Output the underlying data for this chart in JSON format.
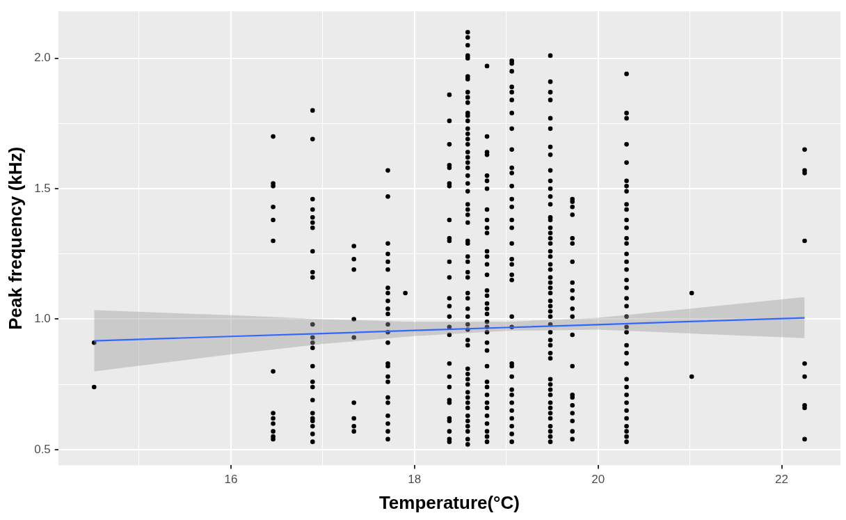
{
  "chart_data": {
    "type": "scatter",
    "xlabel": "Temperature(°C)",
    "ylabel": "Peak frequency (kHz)",
    "xlim": [
      14.12,
      22.64
    ],
    "ylim": [
      0.44,
      2.18
    ],
    "xticks": [
      {
        "value": 15,
        "label": null
      },
      16,
      {
        "value": 17,
        "label": null
      },
      18,
      {
        "value": 19,
        "label": null
      },
      20,
      {
        "value": 21,
        "label": null
      },
      22
    ],
    "yticks": [
      {
        "value": 0.5,
        "label": "0.5"
      },
      {
        "value": 0.75,
        "label": null
      },
      {
        "value": 1.0,
        "label": "1.0"
      },
      {
        "value": 1.25,
        "label": null
      },
      {
        "value": 1.5,
        "label": "1.5"
      },
      {
        "value": 1.75,
        "label": null
      },
      {
        "value": 2.0,
        "label": "2.0"
      }
    ],
    "grid": true,
    "legend": false,
    "marker": "circle",
    "series": [
      {
        "type": "scatter",
        "color": "#000000",
        "x": [
          14.51,
          14.51
        ],
        "values": [
          0.91,
          0.74
        ]
      },
      {
        "type": "scatter",
        "color": "#000000",
        "x": [
          16.46,
          16.46,
          16.46,
          16.46,
          16.46,
          16.46,
          16.46,
          16.46,
          16.46,
          16.46,
          16.46,
          16.46,
          16.46
        ],
        "values": [
          1.7,
          1.52,
          1.51,
          1.43,
          1.38,
          1.3,
          0.8,
          0.64,
          0.62,
          0.6,
          0.57,
          0.55,
          0.54
        ]
      },
      {
        "type": "scatter",
        "color": "#000000",
        "x": [
          16.89,
          16.89,
          16.89,
          16.89,
          16.89,
          16.89,
          16.89,
          16.89,
          16.89,
          16.89,
          16.89,
          16.89,
          16.89,
          16.89,
          16.89,
          16.89,
          16.89,
          16.89,
          16.89,
          16.89,
          16.89,
          16.89,
          16.89,
          16.89
        ],
        "values": [
          1.8,
          1.69,
          1.46,
          1.42,
          1.39,
          1.37,
          1.35,
          1.26,
          1.18,
          1.16,
          0.98,
          0.93,
          0.91,
          0.89,
          0.82,
          0.76,
          0.74,
          0.69,
          0.64,
          0.62,
          0.61,
          0.59,
          0.56,
          0.53
        ]
      },
      {
        "type": "scatter",
        "color": "#000000",
        "x": [
          17.34,
          17.34,
          17.34,
          17.34,
          17.34,
          17.34,
          17.34,
          17.34,
          17.34
        ],
        "values": [
          1.28,
          1.23,
          1.19,
          1.0,
          0.93,
          0.68,
          0.62,
          0.59,
          0.57
        ]
      },
      {
        "type": "scatter",
        "color": "#000000",
        "x": [
          17.71,
          17.71,
          17.71,
          17.71,
          17.71,
          17.71,
          17.71,
          17.71,
          17.71,
          17.71,
          17.71,
          17.71,
          17.71,
          17.71,
          17.71,
          17.71,
          17.71,
          17.71,
          17.71,
          17.71,
          17.71,
          17.71,
          17.71,
          17.71
        ],
        "values": [
          1.57,
          1.47,
          1.29,
          1.25,
          1.22,
          1.19,
          1.12,
          1.1,
          1.07,
          1.04,
          1.02,
          0.98,
          0.95,
          0.91,
          0.83,
          0.82,
          0.78,
          0.76,
          0.7,
          0.68,
          0.63,
          0.6,
          0.57,
          0.54
        ]
      },
      {
        "type": "scatter",
        "color": "#000000",
        "x": [
          17.9
        ],
        "values": [
          1.1
        ]
      },
      {
        "type": "scatter",
        "color": "#000000",
        "x": [
          18.38,
          18.38,
          18.38,
          18.38,
          18.38,
          18.38,
          18.38,
          18.38,
          18.38,
          18.38,
          18.38,
          18.38,
          18.38,
          18.38,
          18.38,
          18.38,
          18.38,
          18.38,
          18.38,
          18.38,
          18.38,
          18.38,
          18.38,
          18.38,
          18.38,
          18.38,
          18.38
        ],
        "values": [
          1.86,
          1.76,
          1.67,
          1.59,
          1.58,
          1.52,
          1.51,
          1.38,
          1.31,
          1.3,
          1.22,
          1.16,
          1.08,
          1.05,
          1.01,
          0.97,
          0.94,
          0.83,
          0.78,
          0.74,
          0.69,
          0.68,
          0.62,
          0.61,
          0.57,
          0.54,
          0.53
        ]
      },
      {
        "type": "scatter",
        "color": "#000000",
        "x": [
          18.58,
          18.58,
          18.58,
          18.58,
          18.58,
          18.58,
          18.58,
          18.58,
          18.58,
          18.58,
          18.58,
          18.58,
          18.58,
          18.58,
          18.58,
          18.58,
          18.58,
          18.58,
          18.58,
          18.58,
          18.58,
          18.58,
          18.58,
          18.58,
          18.58,
          18.58,
          18.58,
          18.58,
          18.58,
          18.58,
          18.58,
          18.58,
          18.58,
          18.58,
          18.58,
          18.58,
          18.58,
          18.58,
          18.58,
          18.58,
          18.58,
          18.58,
          18.58,
          18.58,
          18.58,
          18.58,
          18.58,
          18.58,
          18.58,
          18.58,
          18.58,
          18.58,
          18.58,
          18.58,
          18.58,
          18.58
        ],
        "values": [
          2.1,
          2.08,
          2.05,
          2.01,
          2.0,
          1.93,
          1.92,
          1.87,
          1.85,
          1.83,
          1.79,
          1.78,
          1.76,
          1.73,
          1.71,
          1.69,
          1.67,
          1.64,
          1.62,
          1.6,
          1.58,
          1.55,
          1.52,
          1.49,
          1.44,
          1.42,
          1.4,
          1.37,
          1.3,
          1.29,
          1.24,
          1.22,
          1.18,
          1.16,
          1.1,
          1.08,
          1.04,
          1.01,
          0.98,
          0.96,
          0.92,
          0.9,
          0.81,
          0.79,
          0.77,
          0.75,
          0.72,
          0.7,
          0.68,
          0.66,
          0.63,
          0.61,
          0.59,
          0.57,
          0.54,
          0.52
        ]
      },
      {
        "type": "scatter",
        "color": "#000000",
        "x": [
          18.79,
          18.79,
          18.79,
          18.79,
          18.79,
          18.79,
          18.79,
          18.79,
          18.79,
          18.79,
          18.79,
          18.79,
          18.79,
          18.79,
          18.79,
          18.79,
          18.79,
          18.79,
          18.79,
          18.79,
          18.79,
          18.79,
          18.79,
          18.79,
          18.79,
          18.79,
          18.79,
          18.79,
          18.79,
          18.79,
          18.79,
          18.79,
          18.79,
          18.79,
          18.79,
          18.79
        ],
        "values": [
          1.97,
          1.7,
          1.64,
          1.63,
          1.55,
          1.53,
          1.5,
          1.42,
          1.38,
          1.35,
          1.33,
          1.26,
          1.24,
          1.21,
          1.17,
          1.11,
          1.09,
          1.06,
          1.04,
          1.02,
          0.99,
          0.97,
          0.95,
          0.91,
          0.88,
          0.82,
          0.76,
          0.74,
          0.71,
          0.68,
          0.66,
          0.63,
          0.6,
          0.57,
          0.55,
          0.53
        ]
      },
      {
        "type": "scatter",
        "color": "#000000",
        "x": [
          19.06,
          19.06,
          19.06,
          19.06,
          19.06,
          19.06,
          19.06,
          19.06,
          19.06,
          19.06,
          19.06,
          19.06,
          19.06,
          19.06,
          19.06,
          19.06,
          19.06,
          19.06,
          19.06,
          19.06,
          19.06,
          19.06,
          19.06,
          19.06,
          19.06,
          19.06,
          19.06,
          19.06,
          19.06,
          19.06,
          19.06,
          19.06,
          19.06,
          19.06
        ],
        "values": [
          1.99,
          1.98,
          1.95,
          1.89,
          1.87,
          1.84,
          1.79,
          1.73,
          1.65,
          1.58,
          1.56,
          1.51,
          1.46,
          1.43,
          1.38,
          1.35,
          1.29,
          1.23,
          1.21,
          1.17,
          1.15,
          1.01,
          0.97,
          0.83,
          0.82,
          0.78,
          0.73,
          0.71,
          0.68,
          0.65,
          0.62,
          0.59,
          0.56,
          0.53
        ]
      },
      {
        "type": "scatter",
        "color": "#000000",
        "x": [
          19.48,
          19.48,
          19.48,
          19.48,
          19.48,
          19.48,
          19.48,
          19.48,
          19.48,
          19.48,
          19.48,
          19.48,
          19.48,
          19.48,
          19.48,
          19.48,
          19.48,
          19.48,
          19.48,
          19.48,
          19.48,
          19.48,
          19.48,
          19.48,
          19.48,
          19.48,
          19.48,
          19.48,
          19.48,
          19.48,
          19.48,
          19.48,
          19.48,
          19.48,
          19.48,
          19.48,
          19.48,
          19.48,
          19.48,
          19.48,
          19.48,
          19.48,
          19.48,
          19.48,
          19.48,
          19.48,
          19.48,
          19.48,
          19.48
        ],
        "values": [
          2.01,
          1.91,
          1.87,
          1.84,
          1.77,
          1.73,
          1.66,
          1.63,
          1.57,
          1.53,
          1.5,
          1.47,
          1.44,
          1.39,
          1.38,
          1.35,
          1.33,
          1.31,
          1.29,
          1.26,
          1.24,
          1.21,
          1.19,
          1.16,
          1.14,
          1.12,
          1.1,
          1.07,
          1.05,
          1.03,
          1.01,
          0.98,
          0.95,
          0.92,
          0.9,
          0.87,
          0.85,
          0.77,
          0.75,
          0.73,
          0.71,
          0.68,
          0.66,
          0.64,
          0.62,
          0.59,
          0.57,
          0.55,
          0.53
        ]
      },
      {
        "type": "scatter",
        "color": "#000000",
        "x": [
          19.72,
          19.72,
          19.72,
          19.72,
          19.72,
          19.72,
          19.72,
          19.72,
          19.72,
          19.72,
          19.72,
          19.72,
          19.72,
          19.72,
          19.72,
          19.72,
          19.72,
          19.72,
          19.72,
          19.72,
          19.72
        ],
        "values": [
          1.46,
          1.45,
          1.43,
          1.4,
          1.31,
          1.29,
          1.22,
          1.14,
          1.11,
          1.08,
          1.04,
          1.01,
          0.94,
          0.82,
          0.71,
          0.7,
          0.67,
          0.64,
          0.61,
          0.57,
          0.54
        ]
      },
      {
        "type": "scatter",
        "color": "#000000",
        "x": [
          20.31,
          20.31,
          20.31,
          20.31,
          20.31,
          20.31,
          20.31,
          20.31,
          20.31,
          20.31,
          20.31,
          20.31,
          20.31,
          20.31,
          20.31,
          20.31,
          20.31,
          20.31,
          20.31,
          20.31,
          20.31,
          20.31,
          20.31,
          20.31,
          20.31,
          20.31,
          20.31,
          20.31,
          20.31,
          20.31,
          20.31,
          20.31,
          20.31,
          20.31,
          20.31,
          20.31,
          20.31
        ],
        "values": [
          1.94,
          1.79,
          1.77,
          1.67,
          1.6,
          1.53,
          1.51,
          1.49,
          1.44,
          1.42,
          1.38,
          1.35,
          1.31,
          1.29,
          1.25,
          1.22,
          1.19,
          1.15,
          1.12,
          1.08,
          1.05,
          1.01,
          0.97,
          0.95,
          0.9,
          0.87,
          0.83,
          0.77,
          0.74,
          0.71,
          0.68,
          0.65,
          0.62,
          0.59,
          0.57,
          0.55,
          0.53
        ]
      },
      {
        "type": "scatter",
        "color": "#000000",
        "x": [
          21.02,
          21.02
        ],
        "values": [
          1.1,
          0.78
        ]
      },
      {
        "type": "scatter",
        "color": "#000000",
        "x": [
          22.25,
          22.25,
          22.25,
          22.25,
          22.25,
          22.25,
          22.25,
          22.25,
          22.25
        ],
        "values": [
          1.65,
          1.57,
          1.56,
          1.3,
          0.83,
          0.78,
          0.67,
          0.66,
          0.54
        ]
      },
      {
        "type": "line",
        "marker": "none",
        "color": "#3366ff",
        "x": [
          14.51,
          16,
          17,
          18,
          19,
          20,
          21,
          22.25
        ],
        "values": [
          0.917,
          0.934,
          0.945,
          0.957,
          0.968,
          0.979,
          0.991,
          1.005
        ],
        "lower": [
          0.8,
          0.865,
          0.905,
          0.935,
          0.955,
          0.96,
          0.945,
          0.927
        ],
        "upper": [
          1.035,
          1.015,
          1.0,
          0.99,
          0.99,
          1.005,
          1.04,
          1.085
        ]
      }
    ]
  }
}
